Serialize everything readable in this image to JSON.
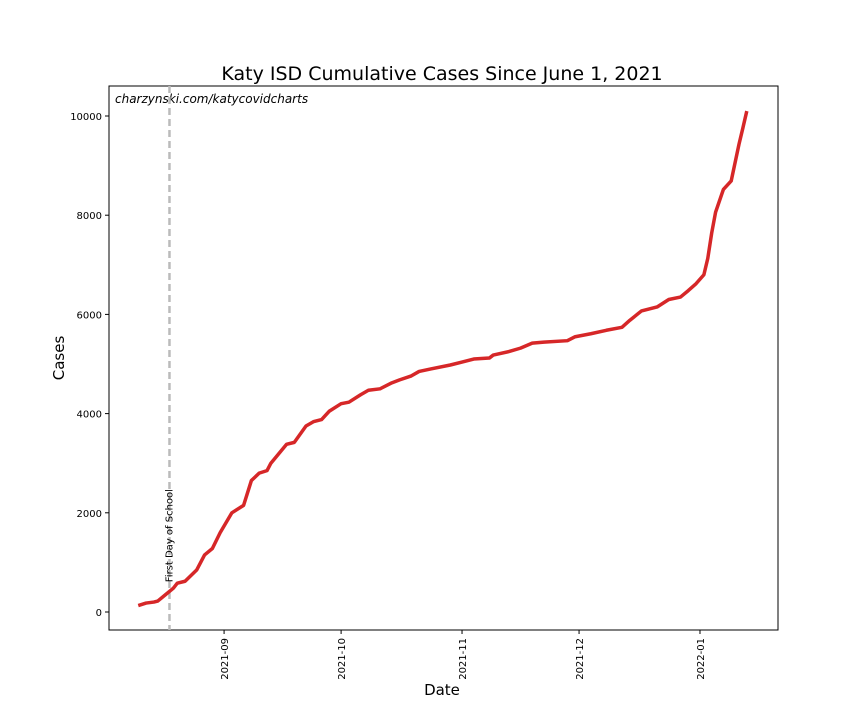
{
  "chart_data": {
    "type": "line",
    "title": "Katy ISD Cumulative Cases Since June 1, 2021",
    "source": "charzynski.com/katycovidcharts",
    "xlabel": "Date",
    "ylabel": "Cases",
    "annotation": {
      "text": "First Day of School",
      "x": -14,
      "color": "#bbbbbb"
    },
    "x": [
      -22,
      -20,
      -18,
      -17,
      -15,
      -13,
      -12,
      -10,
      -7,
      -5,
      -3,
      -1,
      2,
      5,
      7,
      9,
      11,
      12,
      16,
      18,
      21,
      23,
      25,
      27,
      30,
      32,
      35,
      37,
      40,
      43,
      45,
      48,
      50,
      53,
      58,
      61,
      64,
      68,
      69,
      73,
      76,
      79,
      82,
      88,
      90,
      94,
      98,
      102,
      104,
      107,
      111,
      114,
      117,
      119,
      121,
      123,
      124,
      125,
      126,
      128,
      130,
      132,
      133,
      134
    ],
    "series": [
      {
        "name": "Cases",
        "color": "#d62728",
        "values": [
          130,
          180,
          200,
          220,
          350,
          480,
          580,
          620,
          850,
          1150,
          1280,
          1600,
          2000,
          2150,
          2650,
          2800,
          2850,
          3000,
          3380,
          3420,
          3750,
          3840,
          3880,
          4050,
          4200,
          4230,
          4380,
          4470,
          4500,
          4620,
          4680,
          4760,
          4850,
          4900,
          4980,
          5040,
          5100,
          5120,
          5180,
          5250,
          5320,
          5420,
          5440,
          5470,
          5550,
          5610,
          5680,
          5740,
          5880,
          6070,
          6150,
          6300,
          6350,
          6480,
          6620,
          6800,
          7130,
          7640,
          8060,
          8520,
          8690,
          9430,
          9760,
          10100
        ]
      }
    ],
    "xlim": [
      -29.5,
      142
    ],
    "xticks": [
      {
        "value": 0,
        "label": "2021-09"
      },
      {
        "value": 30,
        "label": "2021-10"
      },
      {
        "value": 61,
        "label": "2021-11"
      },
      {
        "value": 91,
        "label": "2021-12"
      },
      {
        "value": 122,
        "label": "2022-01"
      }
    ],
    "ylim": [
      -363,
      10605
    ],
    "yticks": [
      0,
      2000,
      4000,
      6000,
      8000,
      10000
    ]
  }
}
